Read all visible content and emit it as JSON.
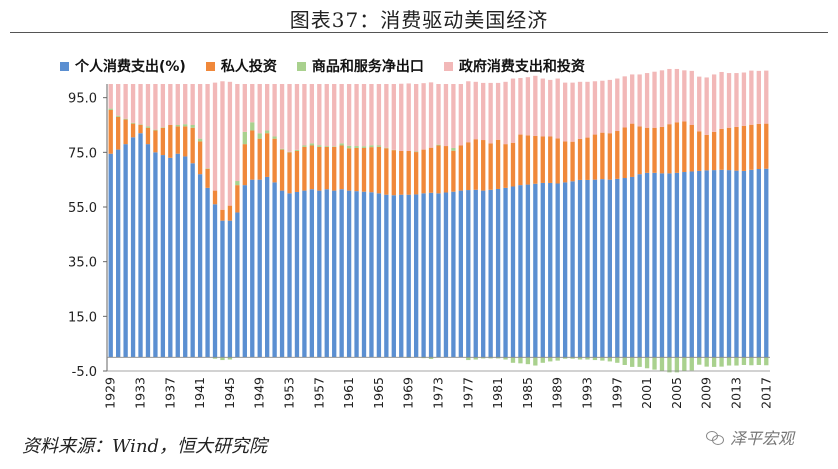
{
  "title": "图表37：消费驱动美国经济",
  "source": "资料来源：Wind，恒大研究院",
  "watermark": "泽平宏观",
  "colors": {
    "consumption": "#5B8FD1",
    "investment": "#F0883A",
    "net_exports": "#A9D18E",
    "government": "#F2B8B8"
  },
  "chart_data": {
    "type": "bar",
    "stacked": true,
    "ylim": [
      -5,
      100
    ],
    "yticks": [
      -5.0,
      15.0,
      35.0,
      55.0,
      75.0,
      95.0
    ],
    "ytick_labels": [
      "-5.0",
      "15.0",
      "35.0",
      "55.0",
      "75.0",
      "95.0"
    ],
    "x_start": 1929,
    "x_end": 2017,
    "xtick_labels": [
      "1929",
      "1933",
      "1937",
      "1941",
      "1945",
      "1949",
      "1953",
      "1957",
      "1961",
      "1965",
      "1969",
      "1973",
      "1977",
      "1981",
      "1985",
      "1989",
      "1993",
      "1997",
      "2001",
      "2005",
      "2009",
      "2013",
      "2017"
    ],
    "legend_position": "top",
    "series": [
      {
        "name": "个人消费支出(%)",
        "key": "consumption",
        "color": "#5B8FD1",
        "values": [
          74.5,
          76.0,
          78.0,
          80.5,
          82.0,
          78.0,
          75.0,
          74.0,
          73.0,
          74.5,
          73.5,
          71.0,
          67.0,
          62.0,
          56.0,
          50.0,
          50.0,
          53.0,
          63.0,
          65.0,
          65.0,
          66.0,
          64.0,
          61.0,
          60.0,
          60.5,
          61.0,
          61.5,
          61.0,
          61.5,
          61.0,
          61.5,
          61.0,
          60.8,
          60.6,
          60.4,
          60.0,
          59.5,
          59.3,
          59.5,
          59.5,
          59.6,
          60.0,
          60.2,
          60.0,
          60.3,
          60.6,
          61.0,
          61.2,
          61.3,
          61.0,
          61.3,
          61.6,
          62.0,
          62.5,
          63.0,
          63.2,
          63.5,
          63.8,
          63.8,
          63.6,
          64.0,
          64.4,
          64.9,
          64.9,
          65.0,
          65.2,
          65.0,
          65.3,
          65.6,
          66.0,
          67.0,
          67.5,
          67.5,
          67.3,
          67.3,
          67.5,
          67.8,
          68.0,
          68.2,
          68.4,
          68.5,
          68.6,
          68.5,
          68.3,
          68.2,
          68.6,
          68.9,
          69.0
        ]
      },
      {
        "name": "私人投资",
        "key": "investment",
        "color": "#F0883A",
        "values": [
          16.0,
          12.0,
          9.0,
          5.0,
          3.0,
          6.0,
          8.0,
          10.0,
          12.0,
          10.0,
          11.0,
          13.0,
          12.0,
          7.0,
          5.0,
          4.0,
          5.5,
          10.0,
          15.0,
          18.0,
          15.0,
          16.0,
          16.0,
          15.0,
          15.0,
          15.0,
          16.0,
          16.0,
          16.0,
          15.5,
          16.0,
          16.0,
          15.5,
          15.8,
          16.0,
          16.5,
          17.0,
          17.0,
          16.5,
          16.0,
          16.0,
          15.5,
          16.0,
          16.5,
          17.5,
          17.0,
          15.0,
          16.5,
          17.5,
          18.5,
          18.5,
          17.0,
          18.0,
          16.0,
          16.0,
          18.5,
          18.0,
          17.5,
          17.0,
          17.0,
          16.5,
          15.0,
          14.5,
          15.0,
          15.5,
          16.5,
          17.0,
          17.0,
          17.5,
          18.5,
          19.5,
          17.5,
          16.5,
          16.5,
          17.0,
          18.0,
          18.5,
          18.5,
          17.0,
          14.5,
          13.0,
          14.0,
          15.0,
          15.5,
          16.0,
          16.5,
          16.5,
          16.5,
          16.5
        ]
      },
      {
        "name": "商品和服务净出口",
        "key": "net_exports",
        "color": "#A9D18E",
        "values": [
          0.5,
          0.4,
          0.3,
          0.3,
          0.2,
          0.5,
          0.3,
          0.2,
          0.0,
          0.5,
          0.8,
          1.0,
          1.0,
          0.2,
          -0.5,
          -1.0,
          -0.8,
          1.5,
          4.5,
          3.0,
          2.0,
          1.0,
          0.8,
          0.3,
          0.2,
          0.4,
          0.5,
          0.8,
          0.6,
          0.3,
          0.2,
          0.8,
          0.9,
          0.7,
          0.6,
          0.7,
          0.5,
          0.2,
          0.1,
          -0.1,
          -0.2,
          0.2,
          -0.3,
          -0.6,
          0.3,
          0.0,
          1.0,
          0.0,
          -1.0,
          -0.8,
          -0.4,
          -0.4,
          -0.4,
          -0.8,
          -2.0,
          -2.2,
          -2.5,
          -3.0,
          -2.0,
          -1.5,
          -1.2,
          -0.5,
          -0.5,
          -0.8,
          -0.8,
          -1.0,
          -1.2,
          -1.5,
          -2.0,
          -2.8,
          -3.5,
          -3.5,
          -4.0,
          -4.5,
          -5.0,
          -5.5,
          -5.5,
          -5.0,
          -4.8,
          -2.7,
          -3.4,
          -3.5,
          -3.4,
          -3.0,
          -3.0,
          -2.8,
          -2.9,
          -2.8,
          -2.9
        ]
      },
      {
        "name": "政府消费支出和投资",
        "key": "government",
        "color": "#F2B8B8",
        "values": [
          9.0,
          11.6,
          12.7,
          14.2,
          14.8,
          15.5,
          16.7,
          15.8,
          15.0,
          15.0,
          14.7,
          15.0,
          20.0,
          30.8,
          39.5,
          47.0,
          45.3,
          35.5,
          17.5,
          14.0,
          18.0,
          17.0,
          19.2,
          23.7,
          24.8,
          24.1,
          22.5,
          21.7,
          22.4,
          22.7,
          22.8,
          21.7,
          22.6,
          22.7,
          22.8,
          22.4,
          22.5,
          23.3,
          24.1,
          24.6,
          24.7,
          24.7,
          24.3,
          23.9,
          22.2,
          22.7,
          23.4,
          22.5,
          22.3,
          21.0,
          20.9,
          22.1,
          20.8,
          22.8,
          23.5,
          20.7,
          21.3,
          22.0,
          21.2,
          20.7,
          21.9,
          21.5,
          21.6,
          20.9,
          20.4,
          19.5,
          19.0,
          19.5,
          19.2,
          18.7,
          18.0,
          19.0,
          20.0,
          20.5,
          20.7,
          20.2,
          19.5,
          18.7,
          19.8,
          20.0,
          21.0,
          21.0,
          20.8,
          20.0,
          19.7,
          19.5,
          19.8,
          19.4,
          19.4
        ]
      }
    ]
  }
}
